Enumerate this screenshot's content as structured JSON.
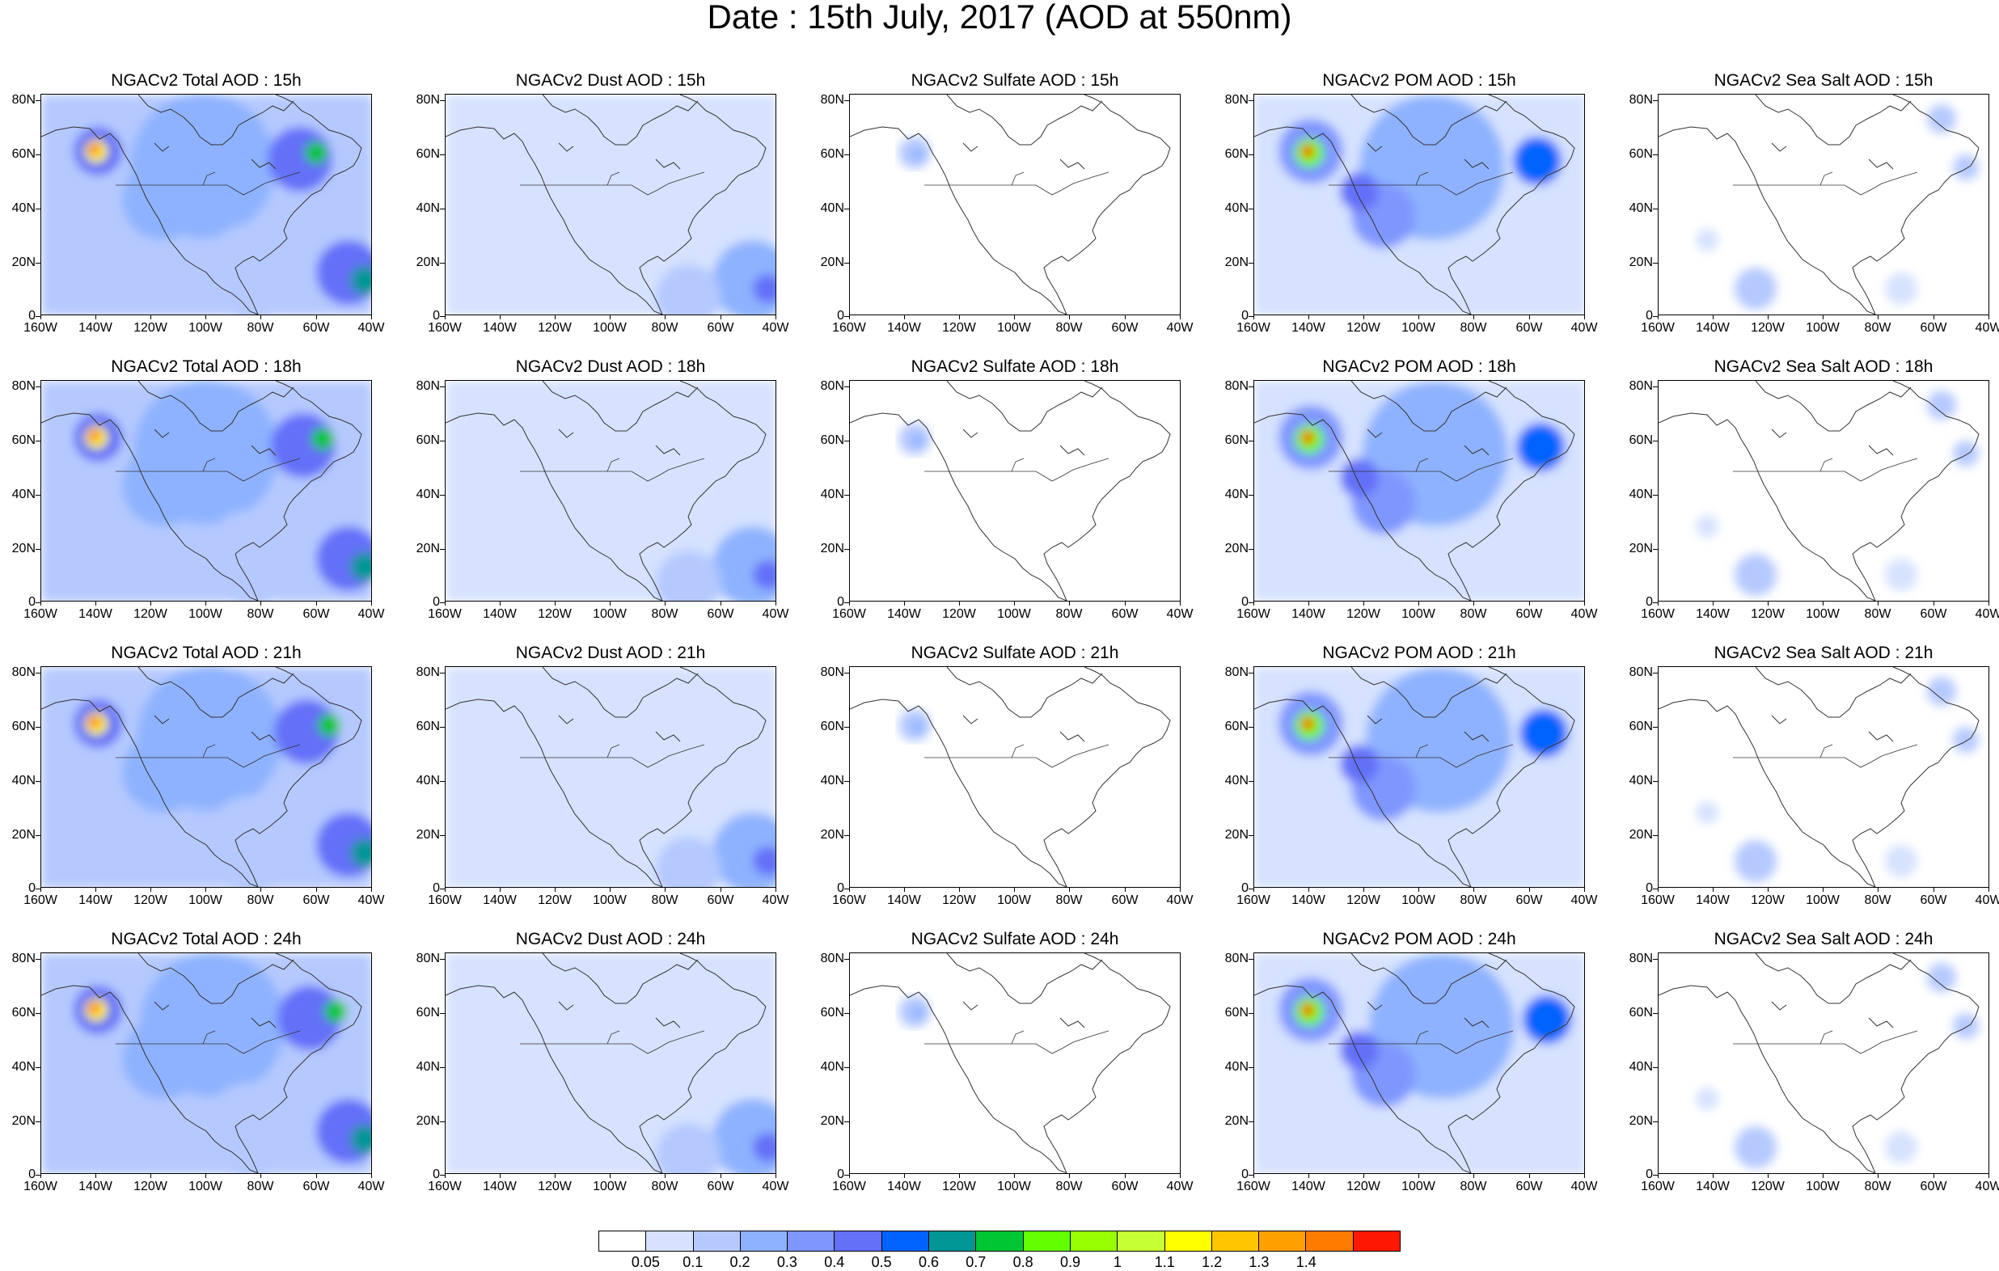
{
  "title": "Date : 15th July, 2017 (AOD at 550nm)",
  "lat_labels": [
    "80N",
    "60N",
    "40N",
    "20N",
    "0"
  ],
  "lon_labels": [
    "160W",
    "140W",
    "120W",
    "100W",
    "80W",
    "60W",
    "40W"
  ],
  "panels": [
    [
      "NGACv2 Total AOD : 15h",
      "NGACv2 Dust AOD : 15h",
      "NGACv2 Sulfate AOD : 15h",
      "NGACv2 POM AOD : 15h",
      "NGACv2 Sea Salt AOD : 15h"
    ],
    [
      "NGACv2 Total AOD : 18h",
      "NGACv2 Dust AOD : 18h",
      "NGACv2 Sulfate AOD : 18h",
      "NGACv2 POM AOD : 18h",
      "NGACv2 Sea Salt AOD : 18h"
    ],
    [
      "NGACv2 Total AOD : 21h",
      "NGACv2 Dust AOD : 21h",
      "NGACv2 Sulfate AOD : 21h",
      "NGACv2 POM AOD : 21h",
      "NGACv2 Sea Salt AOD : 21h"
    ],
    [
      "NGACv2 Total AOD : 24h",
      "NGACv2 Dust AOD : 24h",
      "NGACv2 Sulfate AOD : 24h",
      "NGACv2 POM AOD : 24h",
      "NGACv2 Sea Salt  AOD : 24h"
    ]
  ],
  "colorbar": {
    "labels": [
      "0.05",
      "0.1",
      "0.2",
      "0.3",
      "0.4",
      "0.5",
      "0.6",
      "0.7",
      "0.8",
      "0.9",
      "1",
      "1.1",
      "1.2",
      "1.3",
      "1.4"
    ],
    "colors": [
      "#ffffff",
      "#d6e2ff",
      "#b5c9ff",
      "#8eb2ff",
      "#7f96ff",
      "#6370f8",
      "#0063ff",
      "#009696",
      "#00c633",
      "#63ff00",
      "#96ff00",
      "#c6ff33",
      "#ffff00",
      "#ffc600",
      "#ffa000",
      "#ff7c00",
      "#ff1900"
    ]
  }
}
